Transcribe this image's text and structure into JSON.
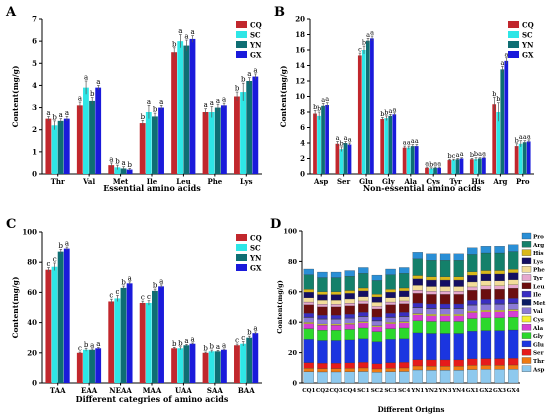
{
  "panels": {
    "A": "A",
    "B": "B",
    "C": "C",
    "D": "D"
  },
  "colors": {
    "CQ": "#c1272d",
    "SC": "#2ee6e6",
    "YN": "#0e6e73",
    "GX": "#1a1adb",
    "errorbar": "#555555",
    "axis": "#000000"
  },
  "chart_data": [
    {
      "id": "A",
      "type": "bar",
      "title": "",
      "xlabel": "Essential amino acids",
      "ylabel": "Content(mg/g)",
      "ylim": [
        0,
        7
      ],
      "yticks": [
        0,
        1,
        2,
        3,
        4,
        5,
        6,
        7
      ],
      "legend": "top-right",
      "categories": [
        "Thr",
        "Val",
        "Met",
        "Ile",
        "Leu",
        "Phe",
        "Lys"
      ],
      "series": [
        {
          "name": "CQ",
          "values": [
            2.5,
            3.1,
            0.4,
            2.3,
            5.5,
            2.8,
            3.5
          ],
          "err": [
            0.1,
            0.15,
            0.1,
            0.12,
            0.2,
            0.15,
            0.2
          ],
          "letters": [
            "a",
            "a",
            "a",
            "b",
            "b",
            "a",
            "b"
          ]
        },
        {
          "name": "SC",
          "values": [
            2.2,
            3.9,
            0.3,
            2.8,
            6.0,
            2.8,
            3.7
          ],
          "err": [
            0.2,
            0.3,
            0.1,
            0.3,
            0.3,
            0.25,
            0.4
          ],
          "letters": [
            "b",
            "a",
            "b",
            "a",
            "a",
            "a",
            "b"
          ]
        },
        {
          "name": "YN",
          "values": [
            2.4,
            3.3,
            0.25,
            2.6,
            5.8,
            3.0,
            4.2
          ],
          "err": [
            0.1,
            0.15,
            0.08,
            0.15,
            0.25,
            0.15,
            0.15
          ],
          "letters": [
            "a",
            "b",
            "a",
            "b",
            "a",
            "a",
            "a"
          ]
        },
        {
          "name": "GX",
          "values": [
            2.5,
            3.9,
            0.2,
            3.0,
            6.1,
            3.1,
            4.4
          ],
          "err": [
            0.1,
            0.1,
            0.05,
            0.1,
            0.15,
            0.1,
            0.12
          ],
          "letters": [
            "a",
            "a",
            "b",
            "a",
            "a",
            "a",
            "a"
          ]
        }
      ]
    },
    {
      "id": "B",
      "type": "bar",
      "title": "",
      "xlabel": "Non-essential amino acids",
      "ylabel": "Content(mg/g)",
      "ylim": [
        0,
        20
      ],
      "yticks": [
        0,
        2,
        4,
        6,
        8,
        10,
        12,
        14,
        16,
        18,
        20
      ],
      "legend": "top-right",
      "categories": [
        "Asp",
        "Ser",
        "Glu",
        "Gly",
        "Ala",
        "Cys",
        "Tyr",
        "His",
        "Arg",
        "Pro"
      ],
      "series": [
        {
          "name": "CQ",
          "values": [
            7.8,
            3.9,
            15.3,
            7.1,
            3.4,
            0.8,
            1.8,
            1.9,
            9.0,
            3.6
          ],
          "err": [
            0.4,
            0.3,
            0.3,
            0.2,
            0.2,
            0.1,
            0.1,
            0.1,
            0.9,
            0.3
          ],
          "letters": [
            "b",
            "a",
            "c",
            "b",
            "a",
            "a",
            "b",
            "b",
            "b",
            "b"
          ]
        },
        {
          "name": "SC",
          "values": [
            7.5,
            3.2,
            16.0,
            7.2,
            3.4,
            0.7,
            1.8,
            1.9,
            8.0,
            3.9
          ],
          "err": [
            0.5,
            0.3,
            0.5,
            0.3,
            0.2,
            0.1,
            0.1,
            0.2,
            1.2,
            0.4
          ],
          "letters": [
            "b",
            "b",
            "b",
            "b",
            "a",
            "b",
            "c",
            "b",
            "b",
            "a"
          ]
        },
        {
          "name": "YN",
          "values": [
            8.8,
            4.0,
            17.2,
            7.5,
            3.6,
            0.8,
            1.9,
            2.0,
            13.5,
            4.1
          ],
          "err": [
            0.3,
            0.2,
            0.3,
            0.2,
            0.2,
            0.1,
            0.1,
            0.1,
            0.4,
            0.2
          ],
          "letters": [
            "a",
            "a",
            "a",
            "a",
            "a",
            "a",
            "a",
            "a",
            "a",
            "a"
          ]
        },
        {
          "name": "GX",
          "values": [
            8.9,
            3.8,
            17.5,
            7.7,
            3.6,
            0.8,
            2.0,
            2.1,
            14.6,
            4.2
          ],
          "err": [
            0.3,
            0.2,
            0.3,
            0.2,
            0.2,
            0.1,
            0.1,
            0.1,
            0.4,
            0.2
          ],
          "letters": [
            "a",
            "a",
            "a",
            "a",
            "a",
            "a",
            "a",
            "a",
            "a",
            "a"
          ]
        }
      ]
    },
    {
      "id": "C",
      "type": "bar",
      "title": "",
      "xlabel": "Different categries of amino acids",
      "ylabel": "Content(mg/g)",
      "ylim": [
        0,
        100
      ],
      "yticks": [
        0,
        20,
        40,
        60,
        80,
        100
      ],
      "legend": "top-right",
      "categories": [
        "TAA",
        "EAA",
        "NEAA",
        "MAA",
        "UAA",
        "SAA",
        "BAA"
      ],
      "series": [
        {
          "name": "CQ",
          "values": [
            75,
            20,
            54,
            53,
            23,
            20,
            25
          ],
          "err": [
            1.5,
            0.5,
            1.5,
            1.2,
            0.6,
            0.5,
            0.8
          ],
          "letters": [
            "c",
            "c",
            "c",
            "c",
            "b",
            "b",
            "c"
          ]
        },
        {
          "name": "SC",
          "values": [
            77,
            22,
            56,
            53,
            23,
            21,
            26
          ],
          "err": [
            2.5,
            1.0,
            2.0,
            1.5,
            1.0,
            0.8,
            1.5
          ],
          "letters": [
            "c",
            "b",
            "c",
            "c",
            "b",
            "b",
            "c"
          ]
        },
        {
          "name": "YN",
          "values": [
            87,
            22,
            63,
            61,
            25,
            21,
            30
          ],
          "err": [
            1.5,
            0.6,
            1.2,
            1.2,
            0.6,
            0.6,
            1.0
          ],
          "letters": [
            "b",
            "a",
            "b",
            "b",
            "a",
            "a",
            "b"
          ]
        },
        {
          "name": "GX",
          "values": [
            89,
            23,
            66,
            64,
            26,
            22,
            33
          ],
          "err": [
            1.0,
            0.5,
            1.0,
            1.0,
            0.5,
            0.5,
            0.8
          ],
          "letters": [
            "a",
            "a",
            "a",
            "a",
            "a",
            "a",
            "a"
          ]
        }
      ]
    },
    {
      "id": "D",
      "type": "bar",
      "stacked": true,
      "title": "",
      "xlabel": "Different Origins",
      "ylabel": "Content(mg/g)",
      "ylim": [
        0,
        100
      ],
      "yticks": [
        0,
        20,
        40,
        60,
        80,
        100
      ],
      "legend": "right",
      "categories": [
        "CQ1",
        "CQ2",
        "CQ3",
        "CQ4",
        "SC1",
        "SC2",
        "SC3",
        "SC4",
        "YN1",
        "YN2",
        "YN3",
        "YN4",
        "GX1",
        "GX2",
        "GX3",
        "GX4"
      ],
      "stack_order": [
        "Asp",
        "Thr",
        "Ser",
        "Glu",
        "Gly",
        "Ala",
        "Cys",
        "Val",
        "Met",
        "Ile",
        "Leu",
        "Tyr",
        "Phe",
        "Lys",
        "His",
        "Arg",
        "Pro"
      ],
      "legend_order": [
        "Pro",
        "Arg",
        "His",
        "Lys",
        "Phe",
        "Tyr",
        "Leu",
        "Ile",
        "Met",
        "Val",
        "Cys",
        "Ala",
        "Gly",
        "Glu",
        "Ser",
        "Thr",
        "Asp"
      ],
      "series_colors": {
        "Asp": "#8ec9ee",
        "Thr": "#f07a12",
        "Ser": "#e51b1b",
        "Glu": "#1b35e0",
        "Gly": "#2cd82c",
        "Ala": "#d43fd4",
        "Cys": "#f5f032",
        "Val": "#8c7ad6",
        "Met": "#0b1d63",
        "Ile": "#3a2ec2",
        "Leu": "#6b0f0f",
        "Tyr": "#e6a8ce",
        "Phe": "#f2dd9a",
        "Lys": "#140f63",
        "His": "#d9b81a",
        "Arg": "#14806a",
        "Pro": "#2a8fd6"
      },
      "base_values": {
        "Asp": 7.8,
        "Thr": 2.4,
        "Ser": 3.8,
        "Glu": 16.0,
        "Gly": 7.3,
        "Ala": 3.5,
        "Cys": 0.8,
        "Val": 3.4,
        "Met": 0.3,
        "Ile": 2.6,
        "Leu": 5.8,
        "Tyr": 1.9,
        "Phe": 2.9,
        "Lys": 3.9,
        "His": 2.0,
        "Arg": 10.0,
        "Pro": 3.9
      },
      "totals": [
        75,
        73,
        73,
        74,
        76,
        71,
        75,
        76,
        86,
        85,
        85,
        85,
        89,
        90,
        90,
        91
      ]
    }
  ]
}
